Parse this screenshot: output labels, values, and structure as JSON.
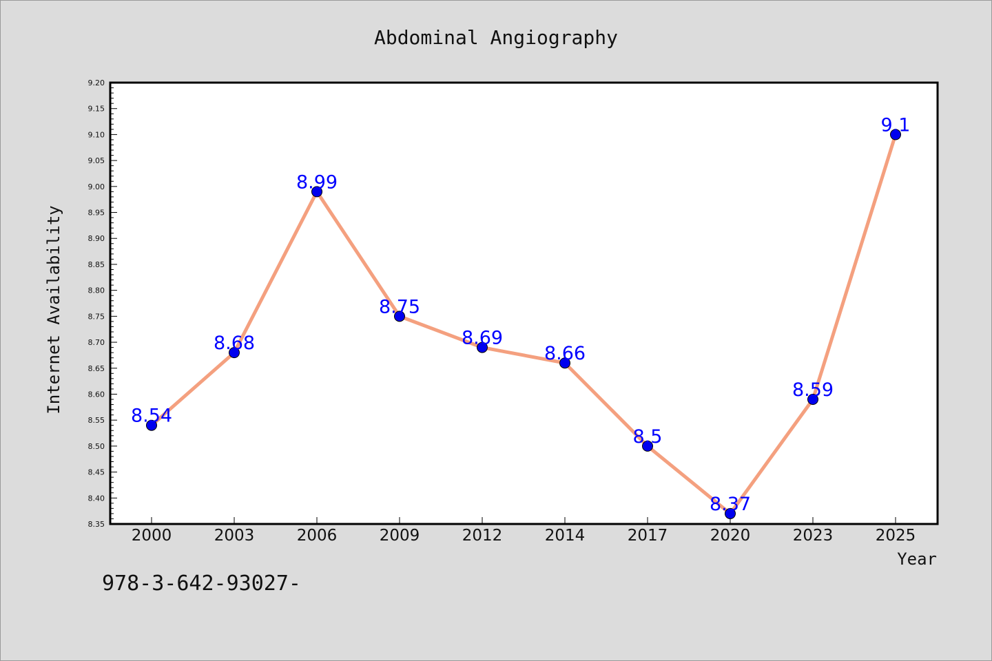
{
  "chart_data": {
    "type": "line",
    "title": "Abdominal Angiography",
    "xlabel": "Year",
    "ylabel": "Internet Availability",
    "categories": [
      "2000",
      "2003",
      "2006",
      "2009",
      "2012",
      "2014",
      "2017",
      "2020",
      "2023",
      "2025"
    ],
    "series": [
      {
        "values": [
          8.54,
          8.68,
          8.99,
          8.75,
          8.69,
          8.66,
          8.5,
          8.37,
          8.59,
          9.1
        ],
        "labels": [
          "8.54",
          "8.68",
          "8.99",
          "8.75",
          "8.69",
          "8.66",
          "8.5",
          "8.37",
          "8.59",
          "9.1"
        ]
      }
    ],
    "ylim": [
      8.35,
      9.2
    ],
    "yticks": [
      "8.35",
      "8.40",
      "8.45",
      "8.50",
      "8.55",
      "8.60",
      "8.65",
      "8.70",
      "8.75",
      "8.80",
      "8.85",
      "8.90",
      "8.95",
      "9.00",
      "9.05",
      "9.10",
      "9.15",
      "9.20"
    ],
    "grid": false,
    "colors": {
      "line": "#f4a07f",
      "marker": "#0000ee",
      "data_label": "#0000ff",
      "background": "#dcdcdc",
      "plot_area": "#ffffff"
    }
  },
  "footer_text": "978-3-642-93027-"
}
